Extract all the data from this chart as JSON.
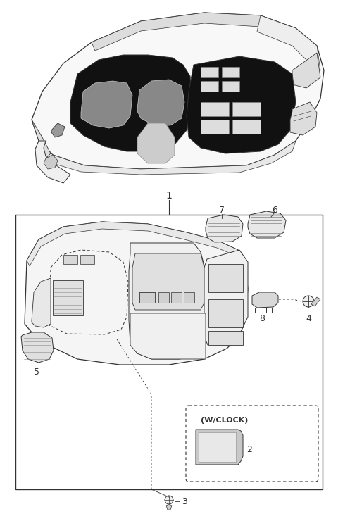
{
  "bg_color": "#ffffff",
  "line_color": "#333333",
  "fill_light": "#f0f0f0",
  "fill_dark": "#111111",
  "fill_mid": "#cccccc",
  "fill_white": "#ffffff",
  "lw_main": 0.9,
  "lw_thin": 0.5,
  "lw_thick": 1.2,
  "label_1": "1",
  "label_2": "2",
  "label_3": "3",
  "label_4": "4",
  "label_5": "5",
  "label_6": "6",
  "label_7": "7",
  "label_8": "8",
  "wclock_text": "(W/CLOCK)"
}
